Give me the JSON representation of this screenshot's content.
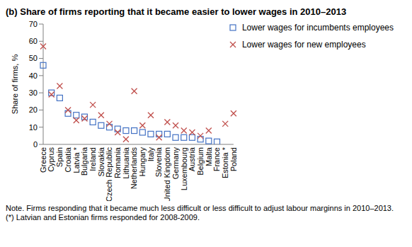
{
  "chart_data": {
    "type": "scatter",
    "title": "(b) Share of firms reporting that it became easier to lower wages in 2010–2013",
    "y_label": "Share of firms, %",
    "categories": [
      "Greece",
      "Cyprus",
      "Spain",
      "Croatia",
      "Latvia *",
      "Bulgaria",
      "Ireland",
      "Slovakia",
      "Czech Republic",
      "Romania",
      "Lithuania",
      "Netherlands",
      "Hungary",
      "Italy",
      "Slovenia",
      "United Kingdom",
      "Germany",
      "Luxembourg",
      "Austria",
      "Belgium",
      "Malta",
      "France",
      "Estonia *",
      "Poland"
    ],
    "series": [
      {
        "name": "Lower wages for incumbents employees",
        "color": "#4472c4",
        "marker": "square",
        "values": [
          46,
          30,
          27,
          18,
          17,
          16,
          13,
          11,
          10,
          9,
          8,
          8,
          7,
          6,
          6,
          6,
          4,
          4,
          4,
          3,
          2,
          1.5,
          null,
          null
        ]
      },
      {
        "name": "Lower wages for new employees",
        "color": "#c0504d",
        "marker": "x",
        "values": [
          57,
          29,
          34,
          20,
          14,
          15,
          23,
          17,
          12,
          7,
          3,
          31,
          11,
          17,
          4,
          13,
          11,
          8,
          7,
          5,
          8,
          null,
          12,
          18
        ]
      }
    ],
    "ylim": [
      0,
      70
    ],
    "yticks": [
      0,
      10,
      20,
      30,
      40,
      50,
      60,
      70
    ],
    "grid": false,
    "legend": "top right",
    "notes": [
      "Note. Firms responding that it became much less difficult or less difficult to adjust labour marginns in 2010–2013.",
      "(*) Latvian and Estonian firms responded for 2008-2009."
    ]
  }
}
